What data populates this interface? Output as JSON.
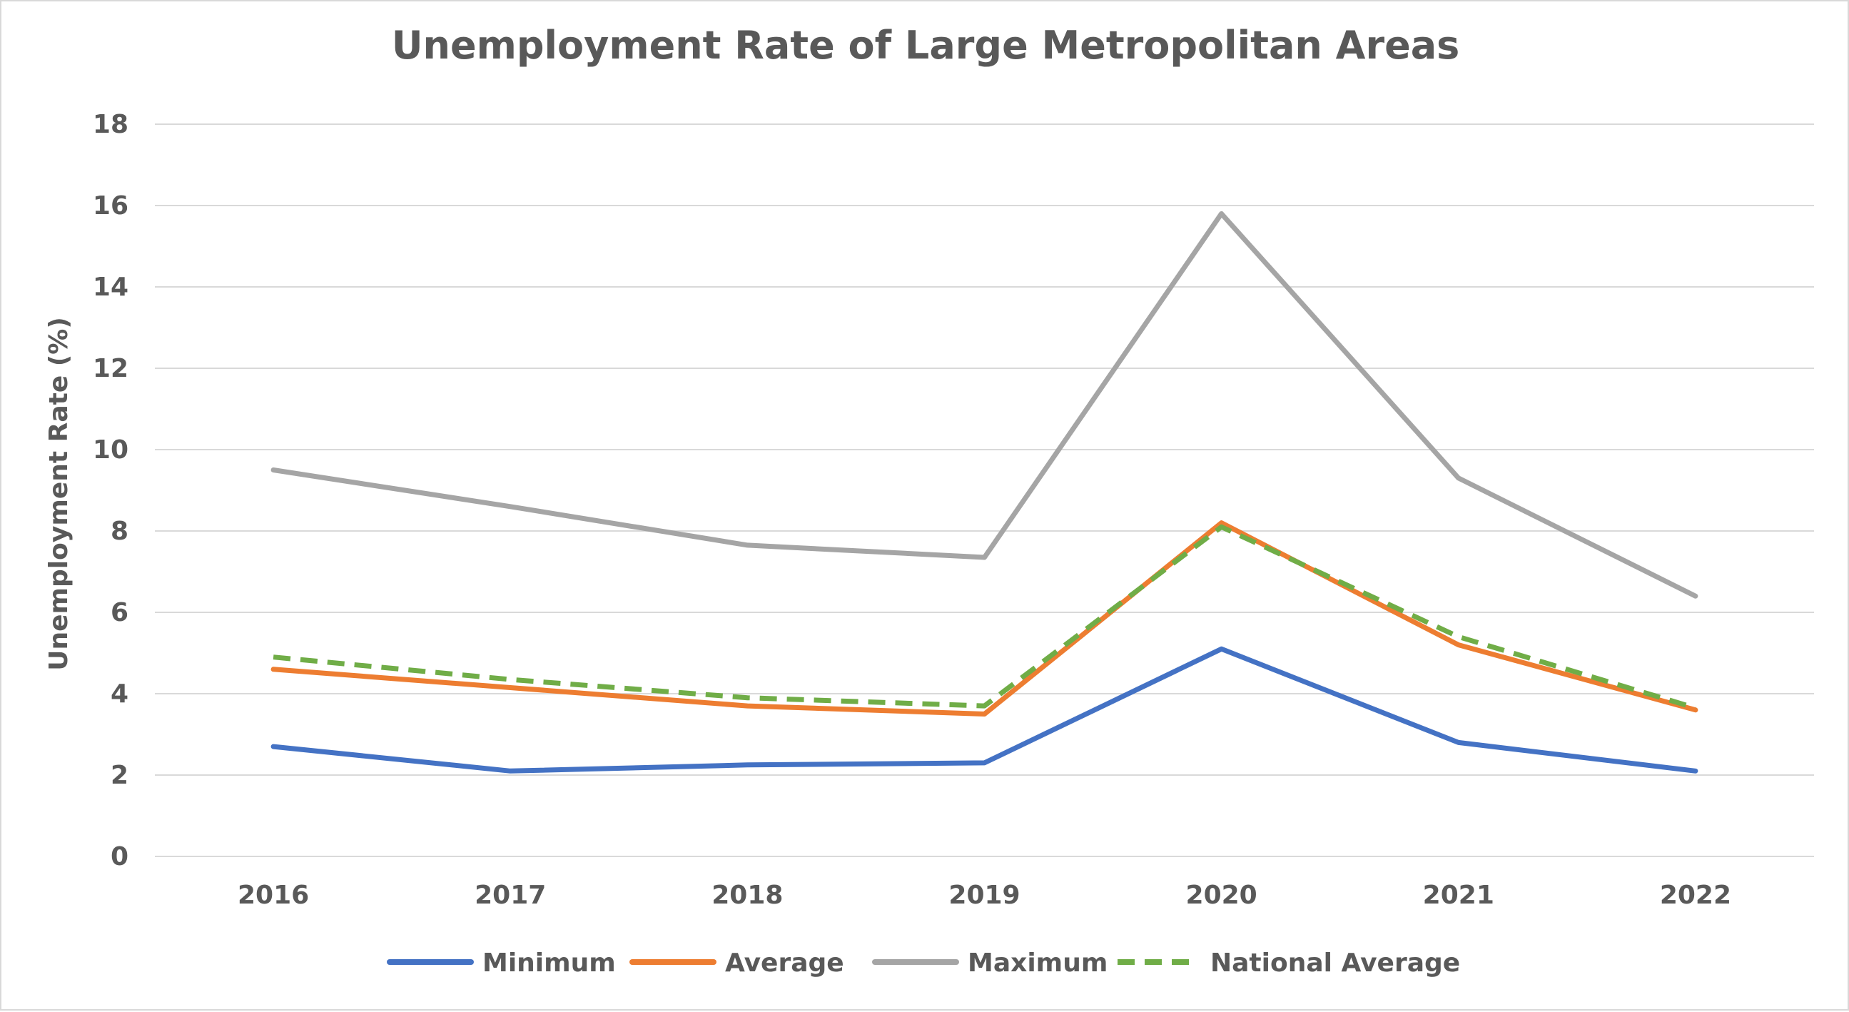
{
  "chart_data": {
    "type": "line",
    "title": "Unemployment Rate of Large Metropolitan Areas",
    "xlabel": "",
    "ylabel": "Unemployment Rate (%)",
    "categories": [
      "2016",
      "2017",
      "2018",
      "2019",
      "2020",
      "2021",
      "2022"
    ],
    "ylim": [
      0,
      18
    ],
    "yticks": [
      0,
      2,
      4,
      6,
      8,
      10,
      12,
      14,
      16,
      18
    ],
    "ytick_labels": [
      "0",
      "2",
      "4",
      "6",
      "8",
      "10",
      "12",
      "14",
      "16",
      "18"
    ],
    "grid": true,
    "legend_position": "bottom",
    "series": [
      {
        "name": "Minimum",
        "values": [
          2.7,
          2.1,
          2.25,
          2.3,
          5.1,
          2.8,
          2.1
        ],
        "color": "#4472c4",
        "dash": false
      },
      {
        "name": "Average",
        "values": [
          4.6,
          4.15,
          3.7,
          3.5,
          8.2,
          5.2,
          3.6
        ],
        "color": "#ed7d31",
        "dash": false
      },
      {
        "name": "Maximum",
        "values": [
          9.5,
          8.6,
          7.65,
          7.35,
          15.8,
          9.3,
          6.4
        ],
        "color": "#a5a5a5",
        "dash": false
      },
      {
        "name": "National Average",
        "values": [
          4.9,
          4.35,
          3.9,
          3.7,
          8.1,
          5.4,
          3.65
        ],
        "color": "#70ad47",
        "dash": true
      }
    ]
  }
}
